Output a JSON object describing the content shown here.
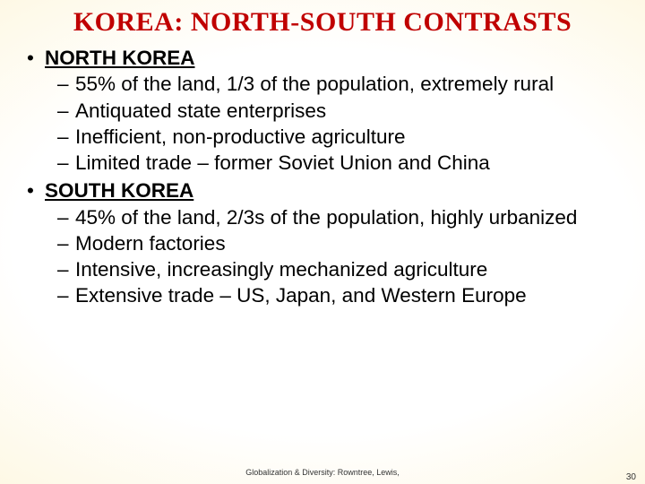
{
  "title": "KOREA: NORTH-SOUTH CONTRASTS",
  "title_color": "#c00000",
  "title_fontsize": 30,
  "body_fontsize": 22.5,
  "body_color": "#000000",
  "background_gradient": {
    "center": "#ffffff",
    "edge": "#f5e8a8"
  },
  "sections": [
    {
      "heading": "NORTH KOREA",
      "items": [
        "55% of the land, 1/3 of the population, extremely rural",
        "Antiquated state enterprises",
        "Inefficient, non-productive agriculture",
        "Limited trade – former Soviet Union and China"
      ]
    },
    {
      "heading": "SOUTH KOREA",
      "items": [
        "45% of the land, 2/3s of the population, highly urbanized",
        "Modern factories",
        "Intensive, increasingly mechanized agriculture",
        "Extensive trade – US, Japan, and Western Europe"
      ]
    }
  ],
  "footer": "Globalization & Diversity: Rowntree, Lewis,",
  "page_number": "30"
}
